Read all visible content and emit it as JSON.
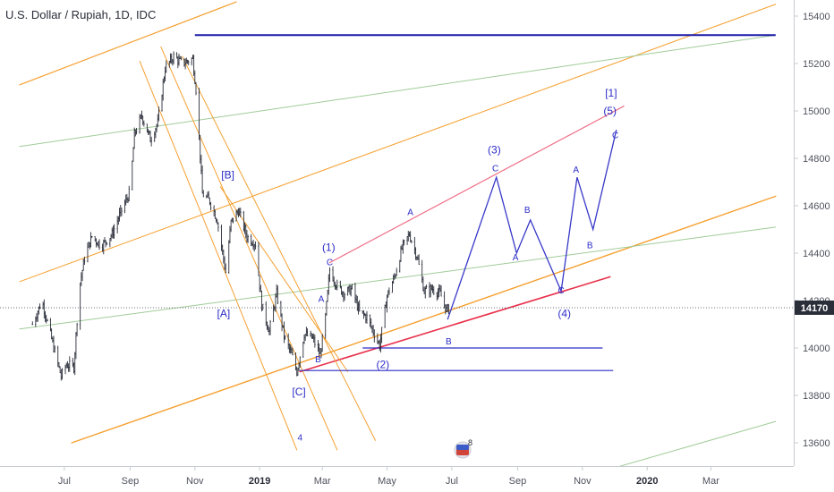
{
  "header": {
    "title": "U.S. Dollar / Rupiah, 1D, IDC"
  },
  "chart_data": {
    "type": "candlestick",
    "title": "U.S. Dollar / Rupiah, 1D, IDC",
    "symbol": "USDIDR",
    "timeframe": "1D",
    "source": "IDC",
    "ylim": [
      13570,
      15460
    ],
    "y_ticks": [
      "15400",
      "15200",
      "15000",
      "14800",
      "14600",
      "14400",
      "14200",
      "14000",
      "13800",
      "13600"
    ],
    "x_ticks": [
      {
        "label": "Jul",
        "bold": false
      },
      {
        "label": "Sep",
        "bold": false
      },
      {
        "label": "Nov",
        "bold": false
      },
      {
        "label": "2019",
        "bold": true
      },
      {
        "label": "Mar",
        "bold": false
      },
      {
        "label": "May",
        "bold": false
      },
      {
        "label": "Jul",
        "bold": false
      },
      {
        "label": "Sep",
        "bold": false
      },
      {
        "label": "Nov",
        "bold": false
      },
      {
        "label": "2020",
        "bold": true
      },
      {
        "label": "Mar",
        "bold": false
      }
    ],
    "last_price": 14170,
    "last_price_label": "14170",
    "grid": false,
    "close_series": [
      {
        "date": "2018-06-01",
        "close": 14100
      },
      {
        "date": "2018-06-10",
        "close": 14200
      },
      {
        "date": "2018-06-20",
        "close": 14020
      },
      {
        "date": "2018-06-28",
        "close": 13880
      },
      {
        "date": "2018-07-03",
        "close": 13930
      },
      {
        "date": "2018-07-10",
        "close": 13920
      },
      {
        "date": "2018-07-15",
        "close": 14250
      },
      {
        "date": "2018-07-20",
        "close": 14380
      },
      {
        "date": "2018-07-27",
        "close": 14470
      },
      {
        "date": "2018-08-05",
        "close": 14430
      },
      {
        "date": "2018-08-15",
        "close": 14480
      },
      {
        "date": "2018-08-22",
        "close": 14560
      },
      {
        "date": "2018-09-01",
        "close": 14660
      },
      {
        "date": "2018-09-05",
        "close": 14900
      },
      {
        "date": "2018-09-12",
        "close": 14980
      },
      {
        "date": "2018-09-20",
        "close": 14880
      },
      {
        "date": "2018-09-27",
        "close": 14950
      },
      {
        "date": "2018-10-04",
        "close": 15180
      },
      {
        "date": "2018-10-12",
        "close": 15230
      },
      {
        "date": "2018-10-20",
        "close": 15200
      },
      {
        "date": "2018-10-30",
        "close": 15220
      },
      {
        "date": "2018-11-03",
        "close": 15050
      },
      {
        "date": "2018-11-08",
        "close": 14650
      },
      {
        "date": "2018-11-15",
        "close": 14620
      },
      {
        "date": "2018-11-22",
        "close": 14540
      },
      {
        "date": "2018-11-30",
        "close": 14320
      },
      {
        "date": "2018-12-05",
        "close": 14530
      },
      {
        "date": "2018-12-12",
        "close": 14580
      },
      {
        "date": "2018-12-20",
        "close": 14470
      },
      {
        "date": "2018-12-28",
        "close": 14440
      },
      {
        "date": "2019-01-03",
        "close": 14180
      },
      {
        "date": "2019-01-10",
        "close": 14070
      },
      {
        "date": "2019-01-17",
        "close": 14230
      },
      {
        "date": "2019-01-24",
        "close": 14050
      },
      {
        "date": "2019-02-01",
        "close": 13960
      },
      {
        "date": "2019-02-05",
        "close": 13900
      },
      {
        "date": "2019-02-12",
        "close": 14060
      },
      {
        "date": "2019-02-20",
        "close": 14040
      },
      {
        "date": "2019-02-27",
        "close": 13970
      },
      {
        "date": "2019-03-04",
        "close": 14130
      },
      {
        "date": "2019-03-08",
        "close": 14330
      },
      {
        "date": "2019-03-15",
        "close": 14260
      },
      {
        "date": "2019-03-22",
        "close": 14230
      },
      {
        "date": "2019-03-29",
        "close": 14250
      },
      {
        "date": "2019-04-05",
        "close": 14150
      },
      {
        "date": "2019-04-12",
        "close": 14130
      },
      {
        "date": "2019-04-20",
        "close": 14050
      },
      {
        "date": "2019-04-24",
        "close": 14010
      },
      {
        "date": "2019-05-01",
        "close": 14220
      },
      {
        "date": "2019-05-08",
        "close": 14300
      },
      {
        "date": "2019-05-15",
        "close": 14420
      },
      {
        "date": "2019-05-22",
        "close": 14480
      },
      {
        "date": "2019-05-29",
        "close": 14390
      },
      {
        "date": "2019-06-05",
        "close": 14240
      },
      {
        "date": "2019-06-12",
        "close": 14250
      },
      {
        "date": "2019-06-20",
        "close": 14230
      },
      {
        "date": "2019-06-26",
        "close": 14160
      },
      {
        "date": "2019-07-01",
        "close": 14170
      }
    ],
    "wave_labels": [
      {
        "text": "[B]",
        "date": "2018-12-02",
        "price": 14715
      },
      {
        "text": "[A]",
        "date": "2018-11-28",
        "price": 14130
      },
      {
        "text": "[C]",
        "date": "2019-02-07",
        "price": 13800
      },
      {
        "text": "4",
        "date": "2019-02-08",
        "price": 13610
      },
      {
        "text": "(1)",
        "date": "2019-03-07",
        "price": 14410
      },
      {
        "text": "C",
        "date": "2019-03-08",
        "price": 14350
      },
      {
        "text": "A",
        "date": "2019-02-28",
        "price": 14195
      },
      {
        "text": "B",
        "date": "2019-02-25",
        "price": 13940
      },
      {
        "text": "(2)",
        "date": "2019-04-27",
        "price": 13915
      },
      {
        "text": "A",
        "date": "2019-05-23",
        "price": 14560
      },
      {
        "text": "B",
        "date": "2019-06-28",
        "price": 14015
      },
      {
        "text": "(3)",
        "date": "2019-08-10",
        "price": 14820
      },
      {
        "text": "C",
        "date": "2019-08-11",
        "price": 14745
      },
      {
        "text": "B",
        "date": "2019-09-10",
        "price": 14570
      },
      {
        "text": "A",
        "date": "2019-08-30",
        "price": 14370
      },
      {
        "text": "C",
        "date": "2019-10-12",
        "price": 14230
      },
      {
        "text": "(4)",
        "date": "2019-10-15",
        "price": 14130
      },
      {
        "text": "A",
        "date": "2019-10-26",
        "price": 14740
      },
      {
        "text": "B",
        "date": "2019-11-08",
        "price": 14420
      },
      {
        "text": "[1]",
        "date": "2019-11-28",
        "price": 15060
      },
      {
        "text": "(5)",
        "date": "2019-11-27",
        "price": 14985
      },
      {
        "text": "C",
        "date": "2019-12-02",
        "price": 14885
      }
    ],
    "projection_path": [
      {
        "date": "2019-06-27",
        "price": 14120
      },
      {
        "date": "2019-08-12",
        "price": 14720
      },
      {
        "date": "2019-08-31",
        "price": 14400
      },
      {
        "date": "2019-09-13",
        "price": 14540
      },
      {
        "date": "2019-10-12",
        "price": 14240
      },
      {
        "date": "2019-10-27",
        "price": 14720
      },
      {
        "date": "2019-11-11",
        "price": 14500
      },
      {
        "date": "2019-12-03",
        "price": 14920
      }
    ],
    "horizontal_lines": [
      {
        "name": "top-resistance",
        "price": 15320,
        "from": "2018-11-01",
        "to": "2020-05-01",
        "color": "#1a1aa8",
        "width": 2
      },
      {
        "name": "support-b",
        "price": 14000,
        "from": "2019-04-08",
        "to": "2019-11-20",
        "color": "#2c2cc8",
        "width": 1.2
      },
      {
        "name": "support-2",
        "price": 13905,
        "from": "2019-02-08",
        "to": "2019-11-30",
        "color": "#2c2cc8",
        "width": 1.2
      }
    ],
    "trend_lines": [
      {
        "name": "red-channel-upper",
        "from": {
          "date": "2019-03-08",
          "price": 14360
        },
        "to": {
          "date": "2019-12-10",
          "price": 15020
        },
        "color": "#f07088",
        "width": 1.2
      },
      {
        "name": "red-channel-lower",
        "from": {
          "date": "2019-02-08",
          "price": 13900
        },
        "to": {
          "date": "2019-11-27",
          "price": 14300
        },
        "color": "#e8304a",
        "width": 1.6
      },
      {
        "name": "orange-upper-left",
        "from": {
          "date": "2018-05-20",
          "price": 15110
        },
        "to": {
          "date": "2018-12-10",
          "price": 15460
        },
        "color": "#f5a030",
        "width": 1.2
      },
      {
        "name": "orange-mid",
        "from": {
          "date": "2018-05-20",
          "price": 14280
        },
        "to": {
          "date": "2020-05-01",
          "price": 15450
        },
        "color": "#f5a030",
        "width": 1
      },
      {
        "name": "orange-lower",
        "from": {
          "date": "2018-07-08",
          "price": 13600
        },
        "to": {
          "date": "2020-05-01",
          "price": 14640
        },
        "color": "#f5a030",
        "width": 1.4
      },
      {
        "name": "green-upper",
        "from": {
          "date": "2018-05-20",
          "price": 14850
        },
        "to": {
          "date": "2020-05-01",
          "price": 15320
        },
        "color": "#a0cc98",
        "width": 1
      },
      {
        "name": "green-mid",
        "from": {
          "date": "2018-05-20",
          "price": 14080
        },
        "to": {
          "date": "2020-05-01",
          "price": 14510
        },
        "color": "#a0cc98",
        "width": 1
      },
      {
        "name": "green-bottom",
        "from": {
          "date": "2019-11-20",
          "price": 13480
        },
        "to": {
          "date": "2020-05-01",
          "price": 13690
        },
        "color": "#a0cc98",
        "width": 1
      },
      {
        "name": "fan-1",
        "from": {
          "date": "2018-09-10",
          "price": 15210
        },
        "to": {
          "date": "2019-02-05",
          "price": 13570
        },
        "color": "#f5a030",
        "width": 1
      },
      {
        "name": "fan-2",
        "from": {
          "date": "2018-09-30",
          "price": 15270
        },
        "to": {
          "date": "2019-03-15",
          "price": 13570
        },
        "color": "#f5a030",
        "width": 1
      },
      {
        "name": "fan-3",
        "from": {
          "date": "2018-10-20",
          "price": 15230
        },
        "to": {
          "date": "2019-04-20",
          "price": 13610
        },
        "color": "#f5a030",
        "width": 1
      },
      {
        "name": "fan-4",
        "from": {
          "date": "2018-11-25",
          "price": 14680
        },
        "to": {
          "date": "2019-03-25",
          "price": 13900
        },
        "color": "#f5a030",
        "width": 1
      }
    ],
    "colors": {
      "candle": "#2a2e39",
      "wave_label": "#2c2cc8",
      "last_price_tag": "#2a2e39"
    },
    "badge": {
      "count": "8"
    }
  }
}
